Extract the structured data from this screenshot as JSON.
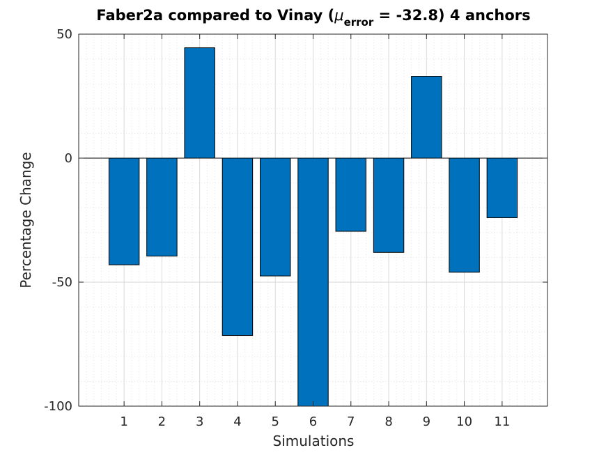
{
  "colors": {
    "bar_fill": "#0072BD",
    "bar_edge": "#000000",
    "axes": "#262626",
    "grid_major": "#d9d9d9",
    "grid_minor": "#e3e3e3"
  },
  "chart_data": {
    "type": "bar",
    "title_prefix": "Faber2a compared to Vinay (",
    "title_mu": "μ",
    "title_sub": "error",
    "title_suffix": " = -32.8) 4 anchors",
    "xlabel": "Simulations",
    "ylabel": "Percentage Change",
    "categories": [
      "1",
      "2",
      "3",
      "4",
      "5",
      "6",
      "7",
      "8",
      "9",
      "10",
      "11"
    ],
    "x": [
      1,
      2,
      3,
      4,
      5,
      6,
      7,
      8,
      9,
      10,
      11
    ],
    "values": [
      -43,
      -39.5,
      44.5,
      -71.5,
      -47.5,
      -100,
      -29.5,
      -38,
      33,
      -46,
      -24
    ],
    "xlim": [
      -0.2,
      12.2
    ],
    "ylim": [
      -100,
      50
    ],
    "yticks": [
      50,
      0,
      -50,
      -100
    ],
    "ytick_labels": [
      "50",
      "0",
      "-50",
      "-100"
    ],
    "grid": true,
    "minor_grid": true,
    "box": true
  }
}
